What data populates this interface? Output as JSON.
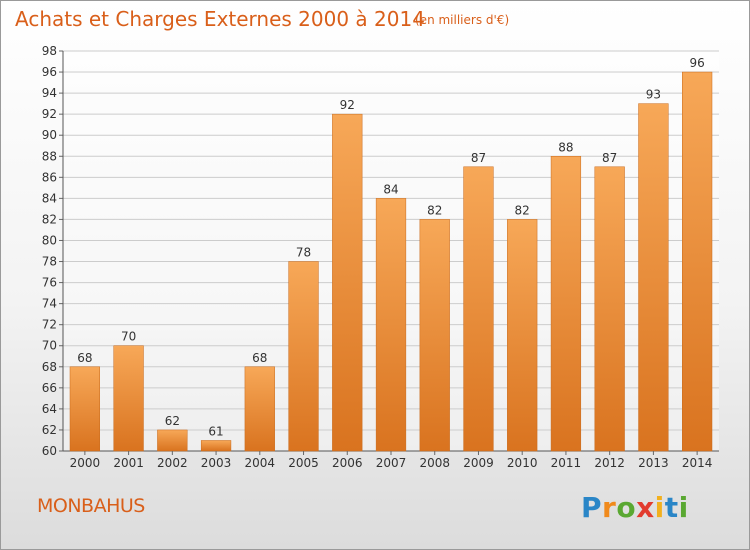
{
  "header": {
    "title": "Achats et Charges Externes 2000 à 2014",
    "unit": "(en milliers d'€)"
  },
  "location": "MONBAHUS",
  "logo": {
    "text": "Proxiti"
  },
  "colors": {
    "bar_light": "#f7a858",
    "bar_dark": "#d9731f",
    "title": "#d95f1a",
    "grid": "#cccccc"
  },
  "chart_data": {
    "type": "bar",
    "categories": [
      "2000",
      "2001",
      "2002",
      "2003",
      "2004",
      "2005",
      "2006",
      "2007",
      "2008",
      "2009",
      "2010",
      "2011",
      "2012",
      "2013",
      "2014"
    ],
    "values": [
      68,
      70,
      62,
      61,
      68,
      78,
      92,
      84,
      82,
      87,
      82,
      88,
      87,
      93,
      96
    ],
    "title": "Achats et Charges Externes 2000 à 2014",
    "xlabel": "",
    "ylabel": "",
    "ylim": [
      60,
      98
    ],
    "yticks": [
      60,
      62,
      64,
      66,
      68,
      70,
      72,
      74,
      76,
      78,
      80,
      82,
      84,
      86,
      88,
      90,
      92,
      94,
      96,
      98
    ],
    "grid": true,
    "data_labels": true
  }
}
